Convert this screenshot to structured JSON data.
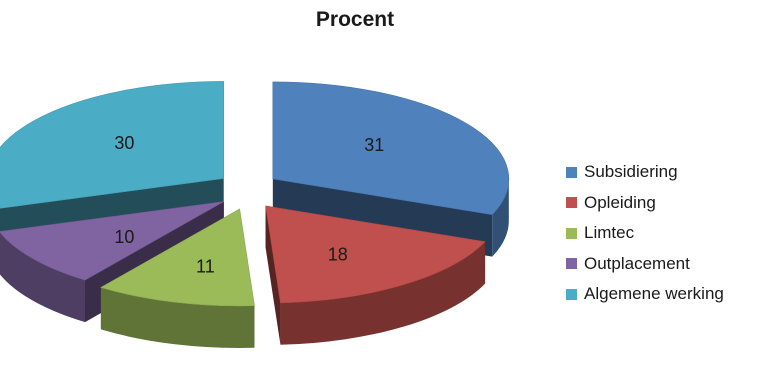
{
  "chart_data": {
    "type": "pie",
    "title": "Procent",
    "legend_position": "right",
    "slices": [
      {
        "label": "Subsidiering",
        "value": 31,
        "color": "#4f81bd"
      },
      {
        "label": "Opleiding",
        "value": 18,
        "color": "#c0504d"
      },
      {
        "label": "Limtec",
        "value": 11,
        "color": "#9bbb59"
      },
      {
        "label": "Outplacement",
        "value": 10,
        "color": "#8064a2"
      },
      {
        "label": "Algemene werking",
        "value": 30,
        "color": "#4bacc6"
      }
    ]
  }
}
